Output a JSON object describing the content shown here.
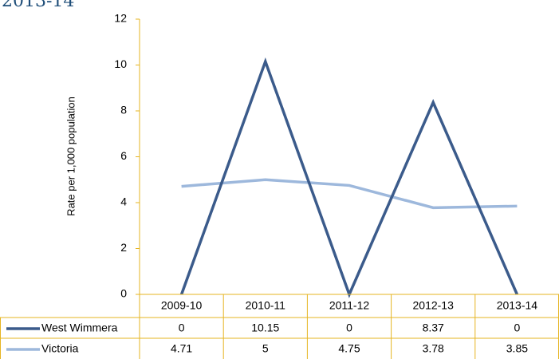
{
  "chart_data": {
    "type": "line",
    "title": "2013-14",
    "y_label": "Rate per 1,000 population",
    "categories": [
      "2009-10",
      "2010-11",
      "2011-12",
      "2012-13",
      "2013-14"
    ],
    "series": [
      {
        "name": "West Wimmera",
        "color": "#3b5b8b",
        "values": [
          0,
          10.15,
          0,
          8.37,
          0
        ]
      },
      {
        "name": "Victoria",
        "color": "#9db8dc",
        "values": [
          4.71,
          5,
          4.75,
          3.78,
          3.85
        ]
      }
    ],
    "ylim": [
      0,
      12
    ],
    "yticks": [
      0,
      2,
      4,
      6,
      8,
      10,
      12
    ],
    "grid": false,
    "data_table": true
  }
}
